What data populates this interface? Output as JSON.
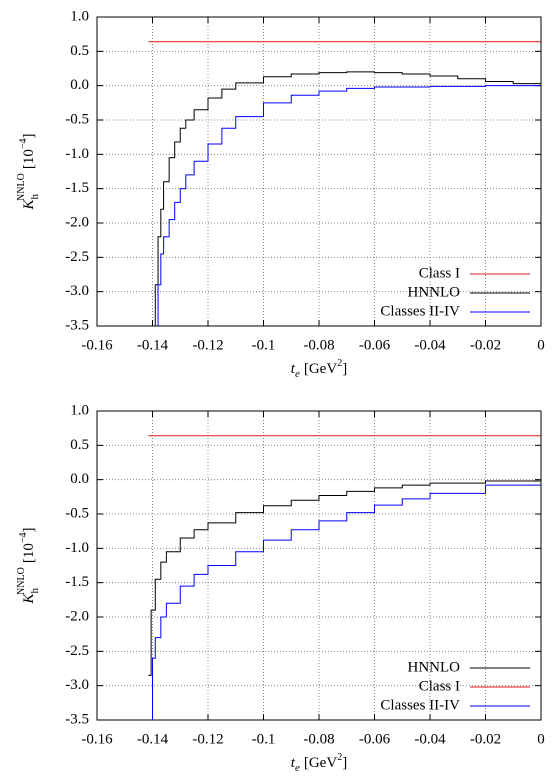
{
  "chart_data": [
    {
      "type": "line",
      "step": true,
      "grid": true,
      "legend": "lower right",
      "xlabel": {
        "symbol": "t",
        "sub": "e",
        "unit": "[GeV",
        "unit_sup": "2",
        "unit_end": "]"
      },
      "ylabel": {
        "symbol": "K",
        "sub": "h",
        "sup": "NNLO",
        "unit": "[10",
        "unit_sup": "−4",
        "unit_end": "]"
      },
      "xlim": [
        -0.16,
        0
      ],
      "xticks": [
        -0.16,
        -0.14,
        -0.12,
        -0.1,
        -0.08,
        -0.06,
        -0.04,
        -0.02,
        0
      ],
      "ylim": [
        -3.5,
        1
      ],
      "yticks": [
        {
          "value": 1,
          "label": "1.0"
        },
        0.5,
        {
          "value": 0,
          "label": "0.0"
        },
        -0.5,
        {
          "value": -1,
          "label": "-1.0"
        },
        -1.5,
        {
          "value": -2,
          "label": "-2.0"
        },
        -2.5,
        {
          "value": -3,
          "label": "-3.0"
        },
        -3.5
      ],
      "series": [
        {
          "name": "Class I",
          "color": "#e41a1c",
          "x": [
            -0.1415,
            0
          ],
          "values": [
            0.64,
            0
          ]
        },
        {
          "name": "HNNLO",
          "color": "#000000",
          "x": [
            -0.1405,
            -0.139,
            -0.138,
            -0.137,
            -0.136,
            -0.134,
            -0.132,
            -0.13,
            -0.128,
            -0.125,
            -0.12,
            -0.115,
            -0.11,
            -0.1,
            -0.09,
            -0.08,
            -0.07,
            -0.06,
            -0.05,
            -0.04,
            -0.03,
            -0.02,
            -0.01,
            0
          ],
          "values": [
            -3.5,
            -2.9,
            -2.2,
            -1.8,
            -1.4,
            -1.05,
            -0.82,
            -0.62,
            -0.5,
            -0.35,
            -0.18,
            -0.05,
            0.04,
            0.13,
            0.17,
            0.19,
            0.2,
            0.19,
            0.17,
            0.14,
            0.1,
            0.06,
            0.03,
            0
          ]
        },
        {
          "name": "Classes II-IV",
          "color": "#0000ff",
          "x": [
            -0.1395,
            -0.138,
            -0.137,
            -0.136,
            -0.134,
            -0.132,
            -0.13,
            -0.128,
            -0.125,
            -0.12,
            -0.115,
            -0.11,
            -0.1,
            -0.09,
            -0.08,
            -0.07,
            -0.06,
            -0.04,
            -0.02,
            0
          ],
          "values": [
            -3.5,
            -2.9,
            -2.45,
            -2.2,
            -1.95,
            -1.7,
            -1.5,
            -1.3,
            -1.1,
            -0.85,
            -0.62,
            -0.45,
            -0.25,
            -0.14,
            -0.08,
            -0.04,
            -0.02,
            -0.01,
            0,
            0
          ]
        }
      ]
    },
    {
      "type": "line",
      "step": true,
      "grid": true,
      "legend": "lower right",
      "xlabel": {
        "symbol": "t",
        "sub": "e",
        "unit": "[GeV",
        "unit_sup": "2",
        "unit_end": "]"
      },
      "ylabel": {
        "symbol": "K",
        "sub": "h",
        "sup": "NNLO",
        "unit": "[10",
        "unit_sup": "−4",
        "unit_end": "]"
      },
      "xlim": [
        -0.16,
        0
      ],
      "xticks": [
        -0.16,
        -0.14,
        -0.12,
        -0.1,
        -0.08,
        -0.06,
        -0.04,
        -0.02,
        0
      ],
      "ylim": [
        -3.5,
        1
      ],
      "yticks": [
        {
          "value": 1,
          "label": "1.0"
        },
        0.5,
        {
          "value": 0,
          "label": "0.0"
        },
        -0.5,
        {
          "value": -1,
          "label": "-1.0"
        },
        -1.5,
        {
          "value": -2,
          "label": "-2.0"
        },
        -2.5,
        {
          "value": -3,
          "label": "-3.0"
        },
        -3.5
      ],
      "series": [
        {
          "name": "HNNLO",
          "color": "#000000",
          "x": [
            -0.1415,
            -0.1405,
            -0.139,
            -0.137,
            -0.135,
            -0.13,
            -0.125,
            -0.12,
            -0.11,
            -0.1,
            -0.09,
            -0.08,
            -0.07,
            -0.06,
            -0.05,
            -0.04,
            -0.02,
            0
          ],
          "values": [
            -2.85,
            -1.9,
            -1.45,
            -1.2,
            -1.05,
            -0.85,
            -0.73,
            -0.63,
            -0.48,
            -0.38,
            -0.3,
            -0.23,
            -0.17,
            -0.12,
            -0.08,
            -0.05,
            -0.02,
            0
          ]
        },
        {
          "name": "Class I",
          "color": "#e41a1c",
          "x": [
            -0.1415,
            0
          ],
          "values": [
            0.64,
            0
          ]
        },
        {
          "name": "Classes II-IV",
          "color": "#0000ff",
          "x": [
            -0.1405,
            -0.14,
            -0.139,
            -0.137,
            -0.135,
            -0.13,
            -0.125,
            -0.12,
            -0.11,
            -0.1,
            -0.09,
            -0.08,
            -0.07,
            -0.06,
            -0.05,
            -0.04,
            -0.02,
            0
          ],
          "values": [
            -3.5,
            -2.6,
            -2.3,
            -2.0,
            -1.8,
            -1.55,
            -1.38,
            -1.25,
            -1.05,
            -0.88,
            -0.73,
            -0.6,
            -0.48,
            -0.37,
            -0.28,
            -0.2,
            -0.08,
            0
          ]
        }
      ]
    }
  ]
}
